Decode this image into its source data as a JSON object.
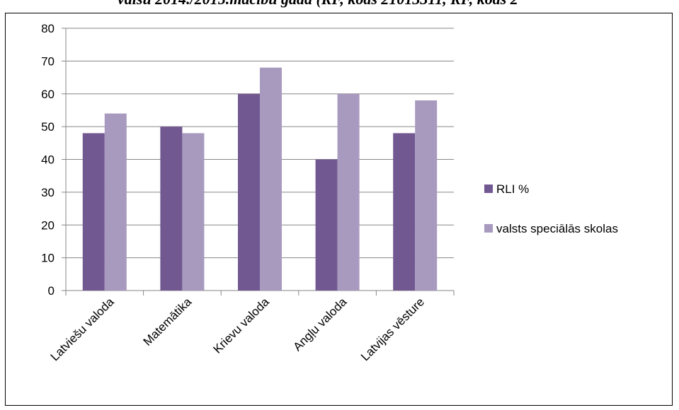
{
  "page": {
    "top_caption": "valsu 2014./2015.mācību gadā (RF, kods 21013311, RF, kods 2"
  },
  "chart_data": {
    "type": "bar",
    "categories": [
      "Latviešu valoda",
      "Matemātika",
      "Krievu valoda",
      "Angļu valoda",
      "Latvijas vēsture"
    ],
    "series": [
      {
        "name": "RLI %",
        "values": [
          48,
          50,
          60,
          40,
          48
        ],
        "color": "#725891"
      },
      {
        "name": "valsts speciālās skolas",
        "values": [
          54,
          48,
          68,
          60,
          58
        ],
        "color": "#a89abf"
      }
    ],
    "ylim": [
      0,
      80
    ],
    "yticks": [
      0,
      10,
      20,
      30,
      40,
      50,
      60,
      70,
      80
    ],
    "grid": true,
    "legend": "right"
  }
}
